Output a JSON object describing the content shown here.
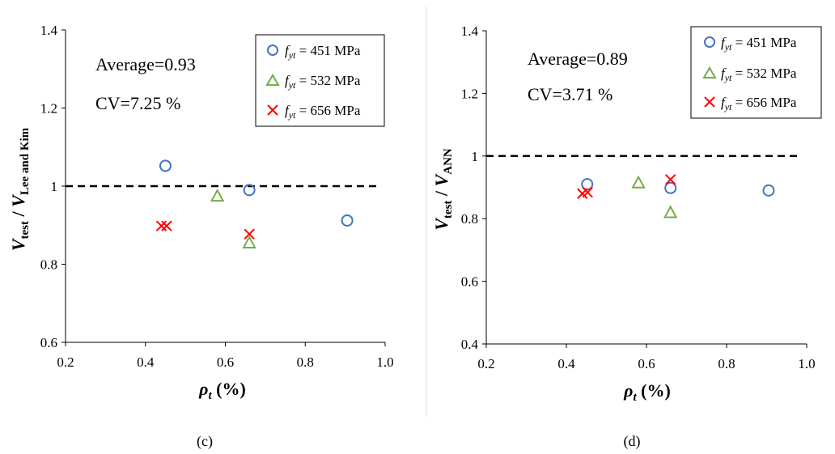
{
  "charts": [
    {
      "caption": "(c)",
      "stat_average": "Average=0.93",
      "stat_cv": "CV=7.25 %",
      "ylabel_main": "V",
      "ylabel_sub1": "test",
      "ylabel_sep": " / ",
      "ylabel_main2": "V",
      "ylabel_sub2": "Lee and Kim",
      "xlabel_main": "ρ",
      "xlabel_sub": "t",
      "xlabel_unit": " (%)",
      "xticks": [
        "0.2",
        "0.4",
        "0.6",
        "0.8",
        "1.0"
      ],
      "yticks": [
        "0.6",
        "0.8",
        "1",
        "1.2",
        "1.4"
      ]
    },
    {
      "caption": "(d)",
      "stat_average": "Average=0.89",
      "stat_cv": "CV=3.71 %",
      "ylabel_main": "V",
      "ylabel_sub1": "test",
      "ylabel_sep": " / ",
      "ylabel_main2": "V",
      "ylabel_sub2": "ANN",
      "xlabel_main": "ρ",
      "xlabel_sub": "t",
      "xlabel_unit": " (%)",
      "xticks": [
        "0.2",
        "0.4",
        "0.6",
        "0.8",
        "1.0"
      ],
      "yticks": [
        "0.4",
        "0.6",
        "0.8",
        "1",
        "1.2",
        "1.4"
      ]
    }
  ],
  "legend": [
    {
      "prefix": "f",
      "sub": "yt",
      "text": " = 451 MPa",
      "marker": "circle",
      "color": "#4472C4"
    },
    {
      "prefix": "f",
      "sub": "yt",
      "text": " = 532 MPa",
      "marker": "triangle",
      "color": "#70AD47"
    },
    {
      "prefix": "f",
      "sub": "yt",
      "text": " = 656 MPa",
      "marker": "cross",
      "color": "#FF0000"
    }
  ],
  "chart_data": [
    {
      "type": "scatter",
      "xlim": [
        0.2,
        1.0
      ],
      "ylim": [
        0.6,
        1.4
      ],
      "reference_line_y": 1.0,
      "grid": false,
      "legend_position": "top-right",
      "series": [
        {
          "name": "fyt = 451 MPa",
          "marker": "circle",
          "color": "#4472C4",
          "x": [
            0.45,
            0.66,
            0.905
          ],
          "y": [
            1.052,
            0.99,
            0.912
          ]
        },
        {
          "name": "fyt = 532 MPa",
          "marker": "triangle",
          "color": "#70AD47",
          "x": [
            0.58,
            0.66
          ],
          "y": [
            0.975,
            0.855
          ]
        },
        {
          "name": "fyt = 656 MPa",
          "marker": "cross",
          "color": "#FF0000",
          "x": [
            0.44,
            0.453,
            0.66
          ],
          "y": [
            0.898,
            0.898,
            0.877
          ]
        }
      ]
    },
    {
      "type": "scatter",
      "xlim": [
        0.2,
        1.0
      ],
      "ylim": [
        0.4,
        1.4
      ],
      "reference_line_y": 1.0,
      "grid": false,
      "legend_position": "top-right",
      "series": [
        {
          "name": "fyt = 451 MPa",
          "marker": "circle",
          "color": "#4472C4",
          "x": [
            0.452,
            0.66,
            0.905
          ],
          "y": [
            0.91,
            0.898,
            0.89
          ]
        },
        {
          "name": "fyt = 532 MPa",
          "marker": "triangle",
          "color": "#70AD47",
          "x": [
            0.58,
            0.66
          ],
          "y": [
            0.915,
            0.82
          ]
        },
        {
          "name": "fyt = 656 MPa",
          "marker": "cross",
          "color": "#FF0000",
          "x": [
            0.44,
            0.453,
            0.66
          ],
          "y": [
            0.88,
            0.884,
            0.925
          ]
        }
      ]
    }
  ]
}
